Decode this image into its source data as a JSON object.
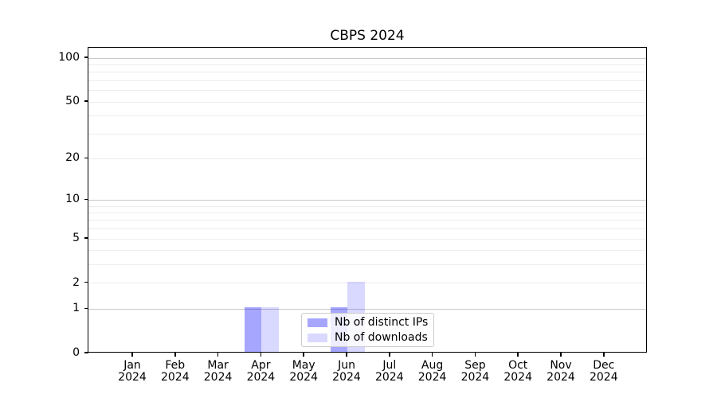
{
  "chart_data": {
    "type": "bar",
    "title": "CBPS 2024",
    "categories": [
      "Jan",
      "Feb",
      "Mar",
      "Apr",
      "May",
      "Jun",
      "Jul",
      "Aug",
      "Sep",
      "Oct",
      "Nov",
      "Dec"
    ],
    "year_label": "2024",
    "series": [
      {
        "name": "Nb of distinct IPs",
        "color": "rgba(0,0,255,0.35)",
        "values": [
          0,
          0,
          0,
          1,
          0,
          1,
          0,
          0,
          0,
          0,
          0,
          0
        ]
      },
      {
        "name": "Nb of downloads",
        "color": "rgba(0,0,255,0.15)",
        "values": [
          0,
          0,
          0,
          1,
          0,
          2,
          0,
          0,
          0,
          0,
          0,
          0
        ]
      }
    ],
    "y_axis": {
      "scale": "log1p",
      "tick_values": [
        0,
        1,
        2,
        5,
        10,
        20,
        50,
        100
      ],
      "ylim": [
        0,
        115
      ],
      "major_gridlines": [
        1,
        10,
        100
      ],
      "minor_gridlines": [
        2,
        3,
        4,
        5,
        6,
        7,
        8,
        9,
        20,
        30,
        40,
        50,
        60,
        70,
        80,
        90
      ]
    },
    "grid": true,
    "legend": {
      "position": "lower center",
      "entries": [
        "Nb of distinct IPs",
        "Nb of downloads"
      ]
    }
  },
  "colors": {
    "major_grid": "#c9c9c9",
    "minor_grid": "#ededed",
    "spine": "#000000",
    "legend_border": "#cccccc"
  }
}
